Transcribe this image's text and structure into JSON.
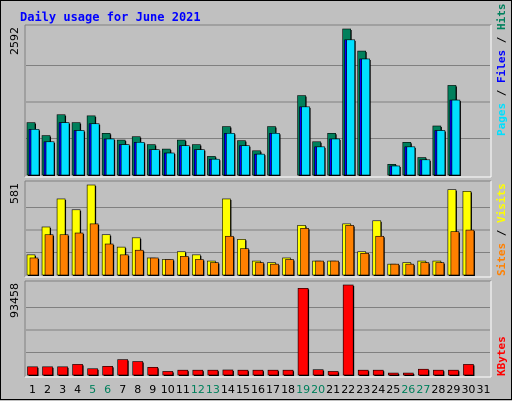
{
  "chart_data": {
    "type": "bar",
    "title": "Daily usage for June 2021",
    "categories": [
      "1",
      "2",
      "3",
      "4",
      "5",
      "6",
      "7",
      "8",
      "9",
      "10",
      "11",
      "12",
      "13",
      "14",
      "15",
      "16",
      "17",
      "18",
      "19",
      "20",
      "21",
      "22",
      "23",
      "24",
      "25",
      "26",
      "27",
      "28",
      "29",
      "30",
      "31"
    ],
    "weekend_days": [
      "5",
      "6",
      "12",
      "13",
      "19",
      "20",
      "26",
      "27"
    ],
    "panels": [
      {
        "name": "hits_files_pages",
        "ymax_label": "2592",
        "ylim": [
          0,
          2592
        ],
        "series": [
          {
            "name": "Hits",
            "color": "#00805c",
            "values": [
              930,
              700,
              1070,
              930,
              1050,
              740,
              620,
              680,
              540,
              460,
              620,
              540,
              330,
              860,
              610,
              430,
              860,
              0,
              1410,
              590,
              740,
              2592,
              2200,
              0,
              190,
              580,
              310,
              870,
              1590,
              0,
              0
            ]
          },
          {
            "name": "Files",
            "color": "#0000ff",
            "values": [
              810,
              590,
              930,
              790,
              910,
              640,
              540,
              580,
              450,
              390,
              520,
              450,
              280,
              740,
              520,
              370,
              740,
              0,
              1210,
              500,
              640,
              2400,
              2060,
              0,
              160,
              500,
              270,
              790,
              1330,
              0,
              0
            ]
          },
          {
            "name": "Pages",
            "color": "#00e0ff",
            "values": [
              810,
              590,
              930,
              790,
              910,
              640,
              540,
              580,
              450,
              390,
              520,
              450,
              280,
              740,
              520,
              370,
              740,
              0,
              1210,
              500,
              640,
              2400,
              2060,
              0,
              160,
              500,
              270,
              790,
              1330,
              0,
              0
            ]
          }
        ]
      },
      {
        "name": "visits_sites",
        "ymax_label": "581",
        "ylim": [
          0,
          581
        ],
        "series": [
          {
            "name": "Visits",
            "color": "#ffff00",
            "values": [
              130,
              310,
              491,
              421,
              581,
              260,
              180,
              240,
              110,
              100,
              150,
              130,
              90,
              491,
              230,
              90,
              80,
              110,
              320,
              90,
              90,
              330,
              150,
              350,
              70,
              80,
              90,
              90,
              551,
              540,
              0
            ],
            "border": "#000000"
          },
          {
            "name": "Sites",
            "color": "#ff8000",
            "values": [
              110,
              260,
              260,
              271,
              330,
              200,
              130,
              160,
              110,
              100,
              120,
              100,
              80,
              250,
              170,
              80,
              70,
              100,
              301,
              90,
              90,
              320,
              140,
              250,
              70,
              70,
              80,
              80,
              280,
              290,
              0
            ]
          }
        ]
      },
      {
        "name": "kbytes",
        "ymax_label": "93458",
        "ylim": [
          0,
          93458
        ],
        "series": [
          {
            "name": "KBytes",
            "color": "#ff0000",
            "values": [
              8500,
              8500,
              8500,
              11000,
              6500,
              9000,
              16000,
              14000,
              8000,
              3700,
              5000,
              5000,
              5000,
              5200,
              5000,
              5000,
              5000,
              5000,
              90000,
              5500,
              3700,
              93458,
              5000,
              5000,
              2000,
              2000,
              6000,
              5000,
              5000,
              11000,
              0
            ]
          }
        ]
      }
    ],
    "legend_right": {
      "top": [
        {
          "text": "Pages",
          "color": "#00e0ff"
        },
        {
          "text": " / ",
          "color": "#000000"
        },
        {
          "text": "Files",
          "color": "#0000ff"
        },
        {
          "text": " / ",
          "color": "#000000"
        },
        {
          "text": "Hits",
          "color": "#00805c"
        }
      ],
      "middle": [
        {
          "text": "Sites",
          "color": "#ff8000"
        },
        {
          "text": " / ",
          "color": "#000000"
        },
        {
          "text": "Visits",
          "color": "#ffff00"
        }
      ],
      "bottom": [
        {
          "text": "KBytes",
          "color": "#ff0000"
        }
      ]
    },
    "colors": {
      "background": "#c0c0c0",
      "grid": "#808080",
      "weekend_label": "#00805c",
      "weekday_label": "#000000"
    }
  }
}
